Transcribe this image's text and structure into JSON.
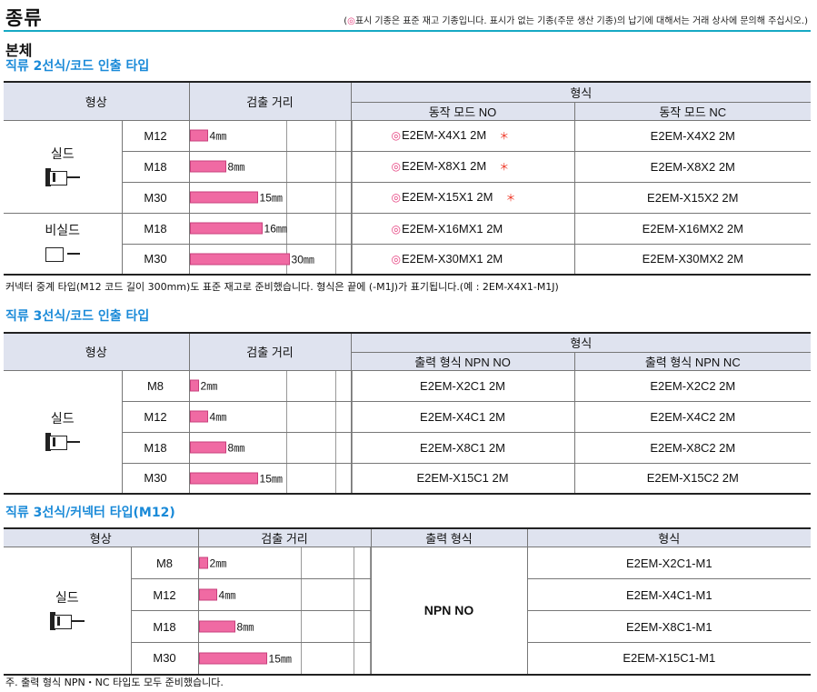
{
  "header": {
    "title": "종류",
    "note_circle": "◎",
    "note_text": "표시 기종은 표준 재고 기종입니다.  표시가 없는 기종(주문 생산 기종)의 납기에 대해서는 거래 상사에 문의해 주십시오.)",
    "note_open": "("
  },
  "body_heading": "본체",
  "section1": {
    "heading": "직류 2선식/코드 인출 타입",
    "col_shape": "형상",
    "col_distance": "검출 거리",
    "col_model": "형식",
    "col_no": "동작 모드 NO",
    "col_nc": "동작 모드 NC",
    "shield_label": "실드",
    "nonshield_label": "비실드",
    "rows": [
      {
        "size": "M12",
        "distance": "4㎜",
        "dist_mm": 4,
        "no": "E2EM-X4X1 2M",
        "nc": "E2EM-X4X2 2M",
        "std": true,
        "star": true
      },
      {
        "size": "M18",
        "distance": "8㎜",
        "dist_mm": 8,
        "no": "E2EM-X8X1 2M",
        "nc": "E2EM-X8X2 2M",
        "std": true,
        "star": true
      },
      {
        "size": "M30",
        "distance": "15㎜",
        "dist_mm": 15,
        "no": "E2EM-X15X1 2M",
        "nc": "E2EM-X15X2 2M",
        "std": true,
        "star": true
      },
      {
        "size": "M18",
        "distance": "16㎜",
        "dist_mm": 16,
        "no": "E2EM-X16MX1 2M",
        "nc": "E2EM-X16MX2 2M",
        "std": true,
        "star": false
      },
      {
        "size": "M30",
        "distance": "30㎜",
        "dist_mm": 30,
        "no": "E2EM-X30MX1 2M",
        "nc": "E2EM-X30MX2 2M",
        "std": true,
        "star": false
      }
    ],
    "std_mark": "◎",
    "star_mark": "＊",
    "footnote": "커넥터 중계 타입(M12 코드 길이 300mm)도 표준 재고로 준비했습니다. 형식은 끝에 (-M1J)가 표기됩니다.(예 : 2EM-X4X1-M1J)"
  },
  "section2": {
    "heading": "직류 3선식/코드 인출 타입",
    "col_shape": "형상",
    "col_distance": "검출 거리",
    "col_model": "형식",
    "col_no": "출력 형식 NPN NO",
    "col_nc": "출력 형식 NPN NC",
    "shield_label": "실드",
    "rows": [
      {
        "size": "M8",
        "distance": "2㎜",
        "dist_mm": 2,
        "no": "E2EM-X2C1 2M",
        "nc": "E2EM-X2C2 2M"
      },
      {
        "size": "M12",
        "distance": "4㎜",
        "dist_mm": 4,
        "no": "E2EM-X4C1 2M",
        "nc": "E2EM-X4C2 2M"
      },
      {
        "size": "M18",
        "distance": "8㎜",
        "dist_mm": 8,
        "no": "E2EM-X8C1 2M",
        "nc": "E2EM-X8C2 2M"
      },
      {
        "size": "M30",
        "distance": "15㎜",
        "dist_mm": 15,
        "no": "E2EM-X15C1 2M",
        "nc": "E2EM-X15C2 2M"
      }
    ]
  },
  "section3": {
    "heading": "직류 3선식/커넥터 타입(M12)",
    "col_shape": "형상",
    "col_distance": "검출 거리",
    "col_output": "출력 형식",
    "col_model": "형식",
    "shield_label": "실드",
    "output_value": "NPN NO",
    "rows": [
      {
        "size": "M8",
        "distance": "2㎜",
        "dist_mm": 2,
        "model": "E2EM-X2C1-M1"
      },
      {
        "size": "M12",
        "distance": "4㎜",
        "dist_mm": 4,
        "model": "E2EM-X4C1-M1"
      },
      {
        "size": "M18",
        "distance": "8㎜",
        "dist_mm": 8,
        "model": "E2EM-X8C1-M1"
      },
      {
        "size": "M30",
        "distance": "15㎜",
        "dist_mm": 15,
        "model": "E2EM-X15C1-M1"
      }
    ],
    "footnote": "주. 출력 형식 NPN・NC 타입도 모두 준비했습니다."
  }
}
